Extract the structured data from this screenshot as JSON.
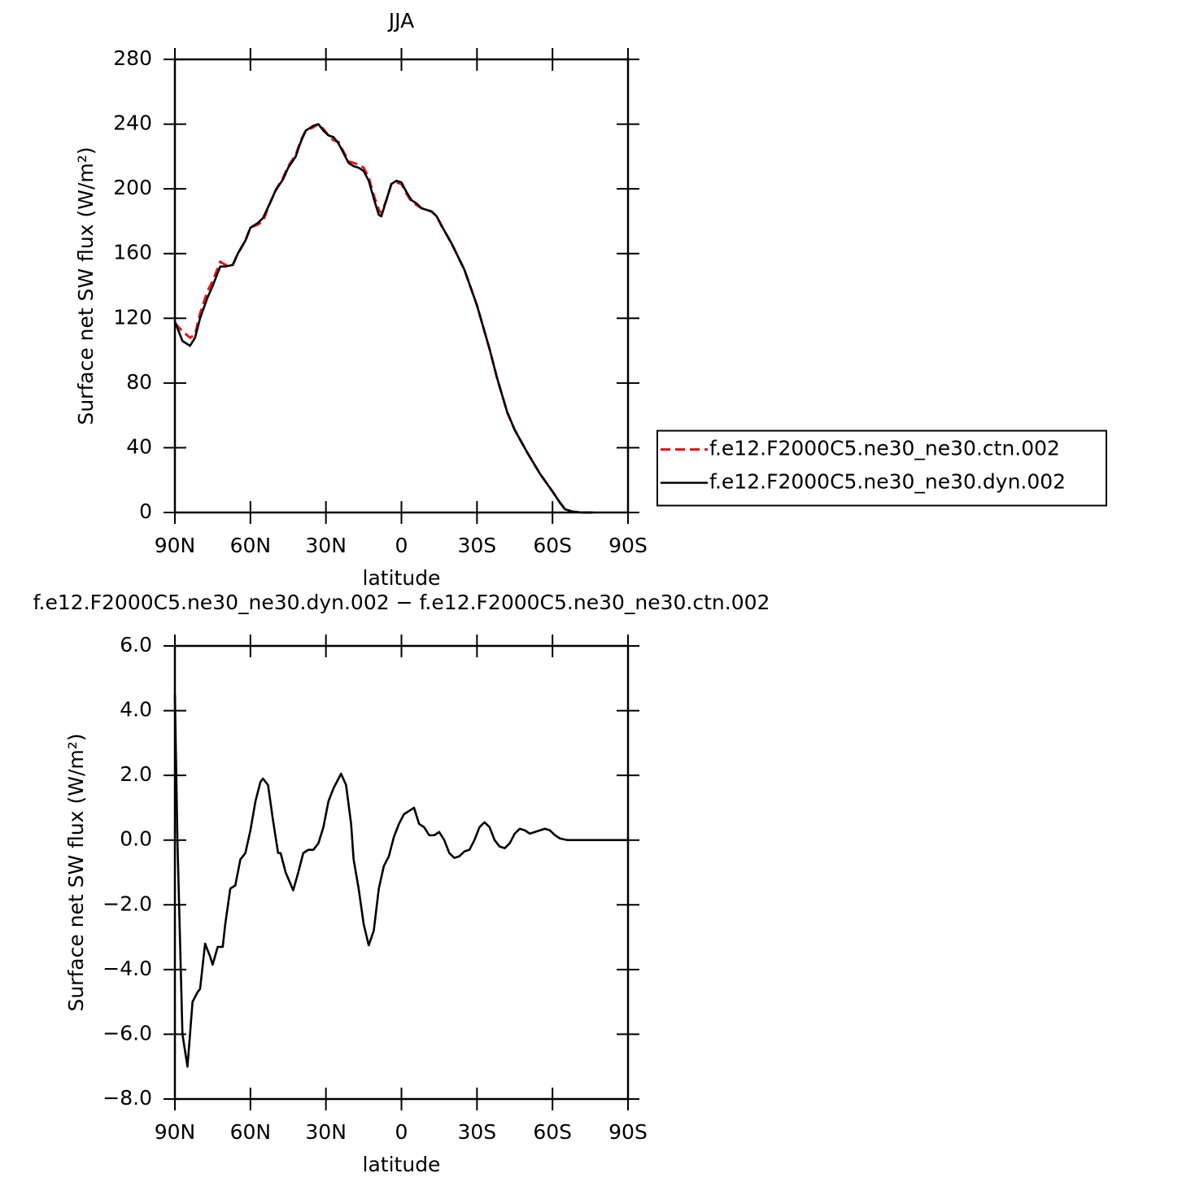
{
  "chart_data": [
    {
      "type": "line",
      "title": "JJA",
      "xlabel": "latitude",
      "ylabel": "Surface net SW flux (W/m²)",
      "x": [
        90,
        87,
        84,
        82,
        80,
        77,
        75,
        72,
        70,
        67,
        65,
        62,
        60,
        57,
        55,
        52,
        50,
        47,
        45,
        42,
        40,
        38,
        35,
        33,
        31,
        29,
        27,
        25,
        23,
        21,
        19,
        17,
        15,
        13,
        11,
        9,
        8,
        6,
        4,
        2,
        0,
        -2,
        -4,
        -6,
        -8,
        -10,
        -12,
        -14,
        -16,
        -20,
        -25,
        -30,
        -35,
        -38,
        -42,
        -45,
        -50,
        -55,
        -60,
        -63,
        -65,
        -68,
        -72,
        -76
      ],
      "series": [
        {
          "name": "f.e12.F2000C5.ne30_ne30.ctn.002",
          "color": "#e8141c",
          "dashed": true,
          "values": [
            117,
            112,
            108,
            110,
            123,
            137,
            143,
            155,
            153,
            153,
            160,
            168,
            176,
            178,
            180,
            192,
            199,
            207,
            214,
            221,
            230,
            236,
            238,
            240,
            237,
            233,
            230,
            229,
            223,
            217,
            216,
            215,
            213,
            207,
            196,
            187,
            185,
            193,
            203,
            204,
            203,
            197,
            192,
            190,
            188,
            187,
            186,
            183,
            177,
            166,
            150,
            128,
            101,
            83,
            62,
            51,
            37,
            24,
            13,
            6,
            2,
            0.5,
            0,
            0
          ]
        },
        {
          "name": "f.e12.F2000C5.ne30_ne30.dyn.002",
          "color": "#000000",
          "dashed": false,
          "values": [
            118,
            106,
            103,
            108,
            120,
            133,
            140,
            152,
            152,
            153,
            160,
            168,
            176,
            179,
            182,
            192,
            199,
            206,
            213,
            220,
            229,
            236,
            239,
            240,
            236,
            233,
            232,
            228,
            222,
            216,
            214,
            213,
            211,
            205,
            194,
            184,
            183,
            193,
            203,
            205,
            204,
            198,
            193,
            191,
            188,
            187,
            186,
            183,
            177,
            166,
            150,
            128,
            101,
            83,
            62,
            51,
            37,
            24,
            13,
            6,
            2,
            0.5,
            0,
            0
          ]
        }
      ],
      "xlim": [
        90,
        -90
      ],
      "xticks": [
        {
          "value": 90,
          "label": "90N"
        },
        {
          "value": 60,
          "label": "60N"
        },
        {
          "value": 30,
          "label": "30N"
        },
        0,
        {
          "value": -30,
          "label": "30S"
        },
        {
          "value": -60,
          "label": "60S"
        },
        {
          "value": -90,
          "label": "90S"
        }
      ],
      "ylim": [
        0,
        280
      ],
      "yticks": [
        0,
        40,
        80,
        120,
        160,
        200,
        240,
        280
      ],
      "legend": "right"
    },
    {
      "type": "line",
      "title": "f.e12.F2000C5.ne30_ne30.dyn.002 − f.e12.F2000C5.ne30_ne30.ctn.002",
      "xlabel": "latitude",
      "ylabel": "Surface net SW flux (W/m²)",
      "x": [
        90,
        89,
        88,
        87,
        85,
        84,
        83,
        81,
        80,
        78,
        76,
        75,
        73,
        71,
        70,
        68,
        66,
        64,
        62,
        60,
        58,
        56,
        55,
        53,
        51,
        49,
        48,
        46,
        43,
        41,
        39,
        37,
        35,
        33,
        31,
        29,
        27,
        25,
        24,
        22,
        20,
        19,
        17,
        15,
        13,
        11,
        9,
        7,
        5,
        3,
        1,
        -1,
        -3,
        -5,
        -7,
        -9,
        -11,
        -13,
        -15,
        -17,
        -19,
        -21,
        -23,
        -25,
        -27,
        -29,
        -31,
        -33,
        -35,
        -37,
        -39,
        -41,
        -43,
        -45,
        -47,
        -49,
        -51,
        -53,
        -55,
        -57,
        -59,
        -61,
        -63,
        -66,
        -70,
        -90
      ],
      "series": [
        {
          "color": "#000000",
          "dashed": false,
          "values": [
            4.5,
            0,
            -3,
            -6,
            -7,
            -6,
            -5,
            -4.7,
            -4.6,
            -3.2,
            -3.6,
            -3.85,
            -3.3,
            -3.3,
            -2.6,
            -1.5,
            -1.4,
            -0.6,
            -0.4,
            0.3,
            1.2,
            1.8,
            1.9,
            1.7,
            0.6,
            -0.4,
            -0.4,
            -1.0,
            -1.55,
            -1.0,
            -0.4,
            -0.3,
            -0.3,
            -0.1,
            0.4,
            1.2,
            1.6,
            1.9,
            2.05,
            1.7,
            0.5,
            -0.6,
            -1.5,
            -2.6,
            -3.25,
            -2.8,
            -1.5,
            -0.8,
            -0.5,
            0.1,
            0.5,
            0.8,
            0.9,
            1.0,
            0.5,
            0.4,
            0.15,
            0.15,
            0.25,
            0,
            -0.4,
            -0.55,
            -0.5,
            -0.35,
            -0.3,
            0,
            0.4,
            0.55,
            0.4,
            0,
            -0.2,
            -0.25,
            -0.1,
            0.2,
            0.35,
            0.3,
            0.2,
            0.25,
            0.3,
            0.35,
            0.3,
            0.15,
            0.05,
            0,
            0,
            0
          ]
        }
      ],
      "xlim": [
        90,
        -90
      ],
      "xticks": [
        {
          "value": 90,
          "label": "90N"
        },
        {
          "value": 60,
          "label": "60N"
        },
        {
          "value": 30,
          "label": "30N"
        },
        0,
        {
          "value": -30,
          "label": "30S"
        },
        {
          "value": -60,
          "label": "60S"
        },
        {
          "value": -90,
          "label": "90S"
        }
      ],
      "ylim": [
        -8,
        6
      ],
      "yticks": [
        {
          "value": -8,
          "label": "−8.0"
        },
        {
          "value": -6,
          "label": "−6.0"
        },
        {
          "value": -4,
          "label": "−4.0"
        },
        {
          "value": -2,
          "label": "−2.0"
        },
        {
          "value": 0,
          "label": "0.0"
        },
        {
          "value": 2,
          "label": "2.0"
        },
        {
          "value": 4,
          "label": "4.0"
        },
        {
          "value": 6,
          "label": "6.0"
        }
      ]
    }
  ]
}
